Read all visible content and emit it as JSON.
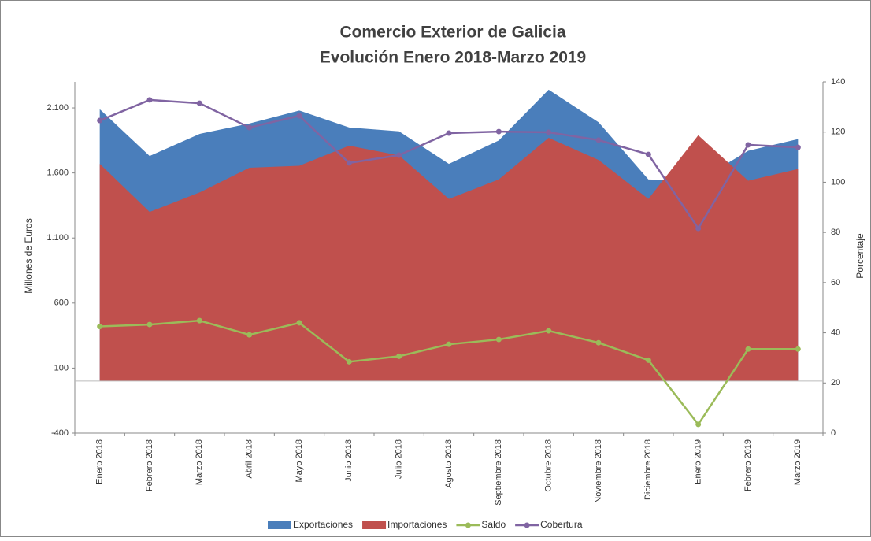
{
  "chart_data": {
    "type": "area",
    "title": [
      "Comercio Exterior de Galicia",
      "Evolución Enero 2018-Marzo 2019"
    ],
    "ylabel": "Millones de Euros",
    "y2label": "Porcentaje",
    "categories": [
      "Enero 2018",
      "Febrero 2018",
      "Marzo 2018",
      "Abril 2018",
      "Mayo 2018",
      "Junio 2018",
      "Julio 2018",
      "Agosto 2018",
      "Septiembre 2018",
      "Octubre 2018",
      "Noviembre 2018",
      "Diciembre 2018",
      "Enero 2019",
      "Febrero 2019",
      "Marzo 2019"
    ],
    "series": [
      {
        "name": "Exportaciones",
        "type": "area",
        "color": "#4a7ebb",
        "values": [
          2090,
          1730,
          1900,
          1980,
          2080,
          1950,
          1920,
          1670,
          1850,
          2240,
          1990,
          1550,
          1540,
          1770,
          1860
        ]
      },
      {
        "name": "Importaciones",
        "type": "area",
        "color": "#c0504d",
        "values": [
          1670,
          1300,
          1450,
          1640,
          1655,
          1810,
          1735,
          1400,
          1550,
          1870,
          1700,
          1400,
          1890,
          1540,
          1630
        ]
      },
      {
        "name": "Saldo",
        "type": "line",
        "color": "#9bbb59",
        "values": [
          420,
          435,
          465,
          356,
          448,
          149,
          191,
          283,
          320,
          387,
          295,
          161,
          -333,
          246,
          246
        ]
      },
      {
        "name": "Cobertura",
        "type": "line",
        "axis": "y2",
        "color": "#8064a2",
        "values": [
          124.6,
          132.8,
          131.5,
          121.8,
          126.5,
          107.7,
          110.8,
          119.6,
          120.2,
          119.9,
          116.8,
          111.1,
          81.6,
          114.9,
          113.9
        ]
      }
    ],
    "ylim": [
      -400,
      2300
    ],
    "yticks": [
      {
        "value": -400,
        "label": "-400"
      },
      100,
      600,
      {
        "value": 1100,
        "label": "1.100"
      },
      {
        "value": 1600,
        "label": "1.600"
      },
      {
        "value": 2100,
        "label": "2.100"
      }
    ],
    "y2lim": [
      0,
      140
    ],
    "y2ticks": [
      0,
      20,
      40,
      60,
      80,
      100,
      120,
      140
    ],
    "grid": false,
    "legend": "bottom"
  }
}
